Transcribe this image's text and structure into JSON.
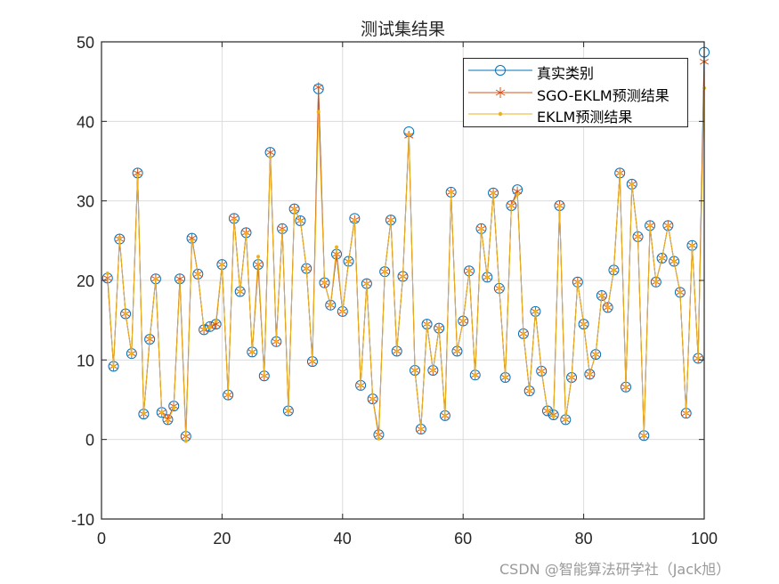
{
  "chart_data": {
    "type": "line",
    "title": "测试集结果",
    "xlabel": "",
    "ylabel": "",
    "xlim": [
      0,
      100
    ],
    "ylim": [
      -10,
      50
    ],
    "xticks": [
      0,
      20,
      40,
      60,
      80,
      100
    ],
    "yticks": [
      -10,
      0,
      10,
      20,
      30,
      40,
      50
    ],
    "grid": true,
    "legend_position": "northeast",
    "x": [
      1,
      2,
      3,
      4,
      5,
      6,
      7,
      8,
      9,
      10,
      11,
      12,
      13,
      14,
      15,
      16,
      17,
      18,
      19,
      20,
      21,
      22,
      23,
      24,
      25,
      26,
      27,
      28,
      29,
      30,
      31,
      32,
      33,
      34,
      35,
      36,
      37,
      38,
      39,
      40,
      41,
      42,
      43,
      44,
      45,
      46,
      47,
      48,
      49,
      50,
      51,
      52,
      53,
      54,
      55,
      56,
      57,
      58,
      59,
      60,
      61,
      62,
      63,
      64,
      65,
      66,
      67,
      68,
      69,
      70,
      71,
      72,
      73,
      74,
      75,
      76,
      77,
      78,
      79,
      80,
      81,
      82,
      83,
      84,
      85,
      86,
      87,
      88,
      89,
      90,
      91,
      92,
      93,
      94,
      95,
      96,
      97,
      98,
      99,
      100
    ],
    "series": [
      {
        "name": "真实类别",
        "color": "#0072BD",
        "marker": "circle",
        "values": [
          20.3,
          9.2,
          25.2,
          15.8,
          10.8,
          33.5,
          3.2,
          12.6,
          20.2,
          3.4,
          2.5,
          4.2,
          20.2,
          0.4,
          25.3,
          20.8,
          13.8,
          14.2,
          14.5,
          22.0,
          5.6,
          27.8,
          18.6,
          26.0,
          11.0,
          22.0,
          8.0,
          36.1,
          12.3,
          26.5,
          3.6,
          29.0,
          27.5,
          21.5,
          9.8,
          44.1,
          19.7,
          16.9,
          23.3,
          16.1,
          22.4,
          27.8,
          6.8,
          19.6,
          5.1,
          0.6,
          21.1,
          27.6,
          11.1,
          20.5,
          38.7,
          8.7,
          1.3,
          14.5,
          8.7,
          14.0,
          3.0,
          31.1,
          11.1,
          14.9,
          21.2,
          8.1,
          26.5,
          20.4,
          31.0,
          19.0,
          7.8,
          29.4,
          31.4,
          13.3,
          6.1,
          16.1,
          8.6,
          3.6,
          3.1,
          29.4,
          2.5,
          7.8,
          19.8,
          14.5,
          8.2,
          10.7,
          18.1,
          16.6,
          21.3,
          33.5,
          6.6,
          32.1,
          25.5,
          0.5,
          26.9,
          19.8,
          22.8,
          26.9,
          22.4,
          18.5,
          3.3,
          24.4,
          10.2,
          48.7
        ]
      },
      {
        "name": "SGO-EKLM预测结果",
        "color": "#D95319",
        "marker": "asterisk",
        "values": [
          20.3,
          9.2,
          25.2,
          15.8,
          10.8,
          33.5,
          3.2,
          12.6,
          20.2,
          3.4,
          2.5,
          4.2,
          20.2,
          0.4,
          25.3,
          20.8,
          13.8,
          14.2,
          14.5,
          22.0,
          5.6,
          27.8,
          18.6,
          26.0,
          11.0,
          22.0,
          8.0,
          36.1,
          12.3,
          26.5,
          3.6,
          29.0,
          27.5,
          21.5,
          9.8,
          44.3,
          19.7,
          16.9,
          23.3,
          16.1,
          22.4,
          27.6,
          6.8,
          19.6,
          5.1,
          0.6,
          21.1,
          27.6,
          11.1,
          20.5,
          38.2,
          8.7,
          1.3,
          14.5,
          8.7,
          14.0,
          3.0,
          31.1,
          11.1,
          14.9,
          21.2,
          8.1,
          26.5,
          20.4,
          31.0,
          19.0,
          7.8,
          29.4,
          31.2,
          13.3,
          6.1,
          16.1,
          8.6,
          3.6,
          3.1,
          29.4,
          2.5,
          7.8,
          19.8,
          14.5,
          8.2,
          10.7,
          18.1,
          16.6,
          21.3,
          33.5,
          6.6,
          32.1,
          25.5,
          0.5,
          26.9,
          19.8,
          22.8,
          26.9,
          22.4,
          18.5,
          3.3,
          24.4,
          10.2,
          47.5
        ]
      },
      {
        "name": "EKLM预测结果",
        "color": "#EDB120",
        "marker": "dot",
        "values": [
          20.9,
          9.2,
          25.4,
          15.8,
          10.8,
          33.2,
          3.3,
          12.8,
          20.2,
          3.4,
          2.3,
          4.0,
          19.8,
          -0.2,
          25.0,
          20.8,
          13.9,
          14.1,
          14.9,
          22.0,
          5.6,
          27.6,
          18.6,
          25.9,
          11.0,
          23.0,
          8.0,
          35.5,
          12.3,
          26.3,
          3.6,
          29.0,
          27.5,
          21.5,
          9.8,
          41.2,
          19.7,
          16.9,
          24.2,
          16.1,
          22.4,
          27.6,
          6.8,
          19.6,
          5.1,
          0.1,
          21.1,
          27.6,
          11.1,
          20.5,
          38.4,
          8.7,
          1.3,
          14.5,
          8.7,
          14.0,
          3.0,
          31.1,
          11.1,
          14.9,
          21.2,
          8.1,
          26.5,
          20.4,
          31.0,
          19.0,
          7.8,
          29.4,
          30.8,
          13.3,
          6.1,
          16.1,
          8.6,
          3.6,
          2.9,
          29.4,
          2.5,
          7.8,
          19.8,
          14.5,
          8.2,
          10.7,
          18.1,
          16.6,
          21.3,
          33.5,
          6.6,
          32.1,
          25.5,
          0.4,
          26.9,
          19.8,
          22.8,
          26.9,
          22.4,
          18.5,
          3.3,
          24.4,
          10.2,
          44.2
        ]
      }
    ]
  },
  "legend": {
    "items": [
      {
        "label": "真实类别"
      },
      {
        "label": "SGO-EKLM预测结果"
      },
      {
        "label": "EKLM预测结果"
      }
    ]
  },
  "watermark": "CSDN @智能算法研学社（Jack旭）"
}
